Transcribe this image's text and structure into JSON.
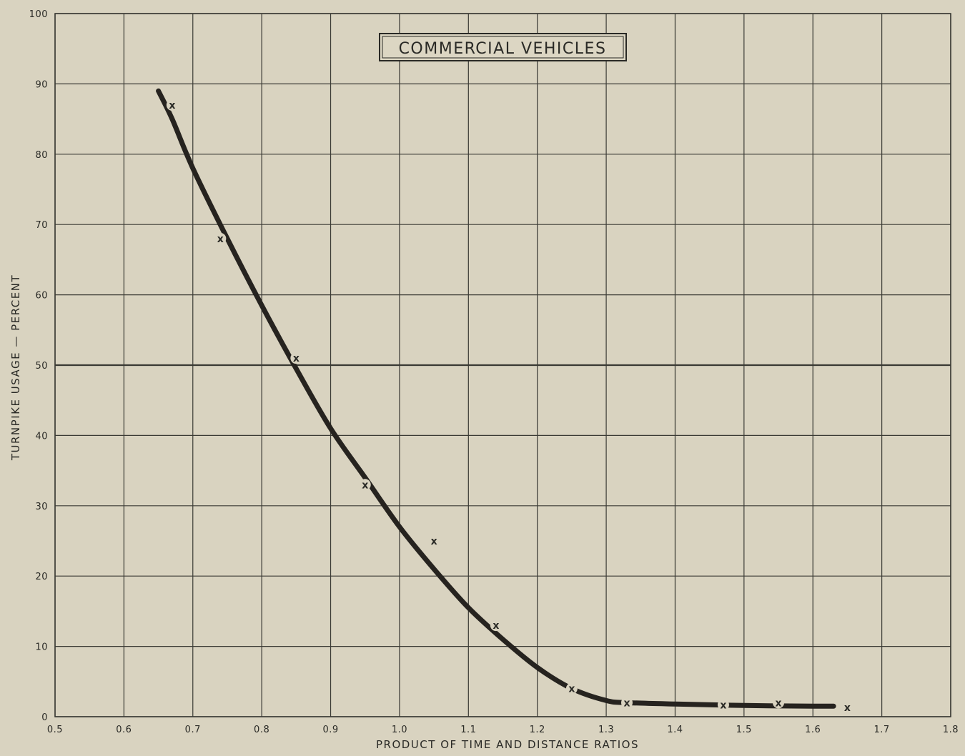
{
  "chart_data": {
    "type": "line",
    "title": "COMMERCIAL VEHICLES",
    "xlabel": "PRODUCT OF TIME AND DISTANCE RATIOS",
    "ylabel": "TURNPIKE USAGE — PERCENT",
    "xlim": [
      0.5,
      1.8
    ],
    "ylim": [
      0,
      100
    ],
    "x_ticks": [
      "0.5",
      "0.6",
      "0.7",
      "0.8",
      "0.9",
      "1.0",
      "1.1",
      "1.2",
      "1.3",
      "1.4",
      "1.5",
      "1.6",
      "1.7",
      "1.8"
    ],
    "y_ticks": [
      "0",
      "10",
      "20",
      "30",
      "40",
      "50",
      "60",
      "70",
      "80",
      "90",
      "100"
    ],
    "grid": true,
    "series": [
      {
        "kind": "fitted-curve",
        "x": [
          0.65,
          0.67,
          0.7,
          0.75,
          0.8,
          0.85,
          0.9,
          0.95,
          1.0,
          1.05,
          1.1,
          1.15,
          1.2,
          1.25,
          1.3,
          1.33,
          1.4,
          1.5,
          1.6,
          1.63
        ],
        "y": [
          89,
          85,
          78,
          68,
          58.5,
          49.5,
          41,
          34,
          27,
          21,
          15.5,
          11,
          7,
          4,
          2.3,
          2,
          1.8,
          1.6,
          1.5,
          1.5
        ]
      },
      {
        "kind": "observed",
        "marker": "x",
        "x": [
          0.67,
          0.74,
          0.85,
          0.95,
          1.05,
          1.14,
          1.25,
          1.33,
          1.47,
          1.55,
          1.65
        ],
        "y": [
          87,
          68,
          51,
          33,
          25,
          13,
          4,
          2,
          1.7,
          2,
          1.3
        ]
      }
    ],
    "colors": {
      "background": "#d9d3c0",
      "grid": "#3a3a34",
      "curve": "#26231f",
      "text": "#2a2a26"
    }
  }
}
